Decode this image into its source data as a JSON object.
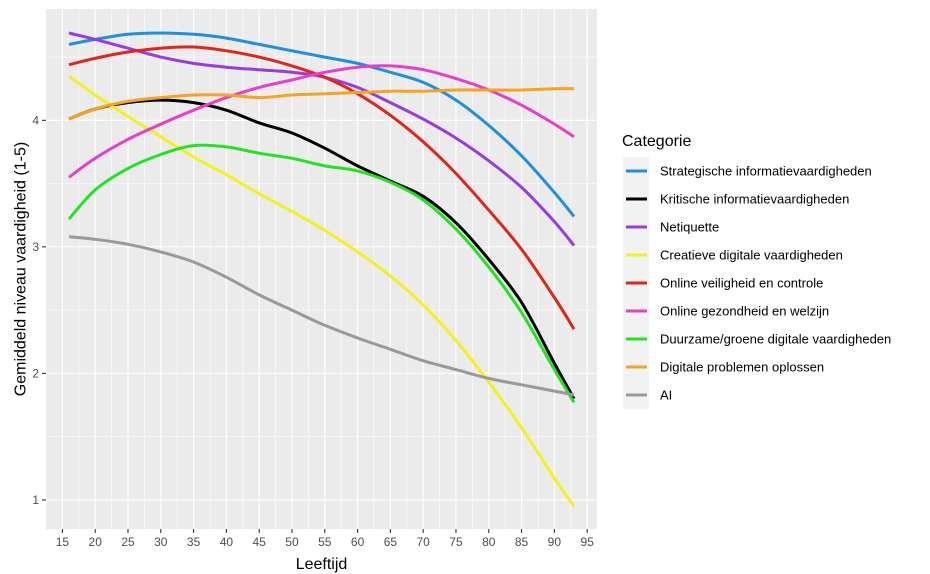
{
  "chart_data": {
    "type": "line",
    "title": "",
    "xlabel": "Leeftijd",
    "ylabel": "Gemiddeld niveau vaardigheid (1-5)",
    "xlim": [
      12.5,
      96.5
    ],
    "ylim": [
      0.77,
      4.88
    ],
    "xticks": [
      15,
      20,
      25,
      30,
      35,
      40,
      45,
      50,
      55,
      60,
      65,
      70,
      75,
      80,
      85,
      90,
      95
    ],
    "yticks": [
      1,
      2,
      3,
      4
    ],
    "grid": true,
    "legend": {
      "title": "Categorie",
      "placement": "right"
    },
    "x": [
      16,
      20,
      25,
      30,
      35,
      40,
      45,
      50,
      55,
      60,
      65,
      70,
      75,
      80,
      85,
      90,
      93
    ],
    "series": [
      {
        "name": "Strategische informatievaardigheden",
        "color": "#1f8fe0",
        "values": [
          4.6,
          4.64,
          4.68,
          4.69,
          4.68,
          4.65,
          4.6,
          4.55,
          4.5,
          4.45,
          4.38,
          4.3,
          4.16,
          3.96,
          3.72,
          3.43,
          3.24
        ]
      },
      {
        "name": "Kritische informatievaardigheden",
        "color": "#000000",
        "values": [
          4.01,
          4.09,
          4.14,
          4.16,
          4.14,
          4.08,
          3.98,
          3.9,
          3.78,
          3.64,
          3.52,
          3.4,
          3.19,
          2.9,
          2.56,
          2.08,
          1.8
        ]
      },
      {
        "name": "Netiquette",
        "color": "#9a3be0",
        "values": [
          4.69,
          4.64,
          4.57,
          4.5,
          4.45,
          4.42,
          4.4,
          4.38,
          4.34,
          4.26,
          4.14,
          4.01,
          3.86,
          3.68,
          3.47,
          3.2,
          3.01
        ]
      },
      {
        "name": "Creatieve digitale vaardigheden",
        "color": "#f5f01e",
        "values": [
          4.35,
          4.2,
          4.03,
          3.87,
          3.71,
          3.57,
          3.42,
          3.28,
          3.13,
          2.96,
          2.77,
          2.54,
          2.26,
          1.93,
          1.57,
          1.17,
          0.95
        ]
      },
      {
        "name": "Online veiligheid en controle",
        "color": "#e0261a",
        "values": [
          4.44,
          4.49,
          4.54,
          4.57,
          4.58,
          4.55,
          4.5,
          4.43,
          4.34,
          4.21,
          4.04,
          3.83,
          3.58,
          3.29,
          2.98,
          2.6,
          2.35
        ]
      },
      {
        "name": "Online gezondheid en welzijn",
        "color": "#e83fc8",
        "values": [
          3.55,
          3.7,
          3.85,
          3.97,
          4.08,
          4.18,
          4.26,
          4.32,
          4.38,
          4.42,
          4.43,
          4.4,
          4.33,
          4.24,
          4.12,
          3.97,
          3.87
        ]
      },
      {
        "name": "Duurzame/groene digitale vaardigheden",
        "color": "#22e322",
        "values": [
          3.22,
          3.45,
          3.62,
          3.73,
          3.8,
          3.79,
          3.74,
          3.7,
          3.64,
          3.6,
          3.51,
          3.37,
          3.14,
          2.84,
          2.48,
          2.03,
          1.77
        ]
      },
      {
        "name": "Digitale problemen oplossen",
        "color": "#f5a321",
        "values": [
          4.01,
          4.09,
          4.15,
          4.18,
          4.2,
          4.2,
          4.18,
          4.2,
          4.21,
          4.22,
          4.23,
          4.23,
          4.24,
          4.24,
          4.24,
          4.25,
          4.25
        ]
      },
      {
        "name": "AI",
        "color": "#999999",
        "values": [
          3.08,
          3.06,
          3.02,
          2.96,
          2.88,
          2.76,
          2.62,
          2.5,
          2.38,
          2.28,
          2.19,
          2.1,
          2.03,
          1.96,
          1.91,
          1.86,
          1.83
        ]
      }
    ]
  }
}
